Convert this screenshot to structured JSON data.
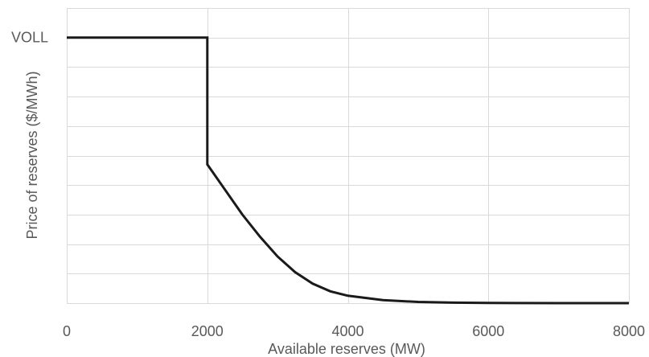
{
  "chart_data": {
    "type": "line",
    "title": "",
    "xlabel": "Available reserves (MW)",
    "ylabel": "Price of reserves ($/MWh)",
    "xlim": [
      0,
      8000
    ],
    "ylim": [
      0,
      1
    ],
    "x_ticks": [
      0,
      2000,
      4000,
      6000,
      8000
    ],
    "x_tick_labels": [
      "0",
      "2000",
      "4000",
      "6000",
      "8000"
    ],
    "y_tick_labels": [
      {
        "value": 0.9,
        "label": "VOLL"
      }
    ],
    "y_gridlines": [
      0,
      0.1,
      0.2,
      0.3,
      0.4,
      0.5,
      0.6,
      0.7,
      0.8,
      0.9,
      1.0
    ],
    "x_gridlines": [
      0,
      2000,
      4000,
      6000,
      8000
    ],
    "grid": true,
    "legend": "none",
    "series_color": "#1a1a1a",
    "series": [
      {
        "points": [
          {
            "x": 0,
            "y": 0.9
          },
          {
            "x": 2000,
            "y": 0.9
          },
          {
            "x": 2000,
            "y": 0.47
          },
          {
            "x": 2250,
            "y": 0.385
          },
          {
            "x": 2500,
            "y": 0.3
          },
          {
            "x": 2750,
            "y": 0.225
          },
          {
            "x": 3000,
            "y": 0.158
          },
          {
            "x": 3250,
            "y": 0.105
          },
          {
            "x": 3500,
            "y": 0.066
          },
          {
            "x": 3750,
            "y": 0.04
          },
          {
            "x": 4000,
            "y": 0.025
          },
          {
            "x": 4500,
            "y": 0.01
          },
          {
            "x": 5000,
            "y": 0.004
          },
          {
            "x": 5500,
            "y": 0.0015
          },
          {
            "x": 6000,
            "y": 0.0005
          },
          {
            "x": 7000,
            "y": 0.0
          },
          {
            "x": 8000,
            "y": 0.0
          }
        ]
      }
    ]
  }
}
